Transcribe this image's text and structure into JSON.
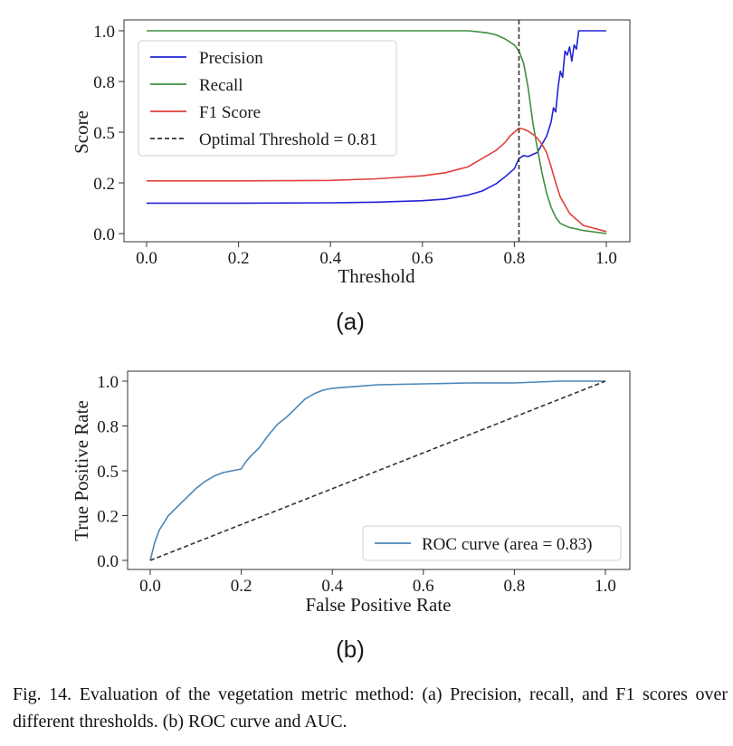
{
  "panels": [
    {
      "label": "(a)"
    },
    {
      "label": "(b)"
    }
  ],
  "caption": "Fig. 14.  Evaluation of the vegetation metric method: (a) Precision, recall, and F1 scores over different thresholds. (b) ROC curve and AUC.",
  "colors": {
    "precision": "#2323d6",
    "recall": "#3f8f3f",
    "f1": "#e0403c",
    "optimal": "#333333",
    "roc": "#4a86b8",
    "chance": "#333333"
  },
  "chart_data": [
    {
      "type": "line",
      "title": "",
      "xlabel": "Threshold",
      "ylabel": "Score",
      "xlim": [
        0.0,
        1.0
      ],
      "ylim": [
        0.0,
        1.0
      ],
      "xticks": [
        "0.0",
        "0.2",
        "0.4",
        "0.6",
        "0.8",
        "1.0"
      ],
      "yticks": [
        "0.0",
        "0.2",
        "0.5",
        "0.8",
        "1.0"
      ],
      "ytick_values": [
        0.0,
        0.25,
        0.5,
        0.75,
        1.0
      ],
      "grid": false,
      "legend_position": "upper-left",
      "series": [
        {
          "name": "Precision",
          "color": "#2323d6",
          "x": [
            0.0,
            0.2,
            0.4,
            0.5,
            0.6,
            0.65,
            0.7,
            0.73,
            0.76,
            0.78,
            0.8,
            0.81,
            0.82,
            0.83,
            0.84,
            0.85,
            0.86,
            0.87,
            0.88,
            0.885,
            0.89,
            0.895,
            0.9,
            0.905,
            0.91,
            0.915,
            0.92,
            0.925,
            0.93,
            0.935,
            0.94,
            0.95,
            1.0
          ],
          "y": [
            0.15,
            0.15,
            0.152,
            0.155,
            0.162,
            0.17,
            0.19,
            0.21,
            0.245,
            0.28,
            0.32,
            0.37,
            0.385,
            0.38,
            0.39,
            0.4,
            0.44,
            0.48,
            0.55,
            0.62,
            0.6,
            0.72,
            0.8,
            0.77,
            0.9,
            0.88,
            0.92,
            0.85,
            0.93,
            0.91,
            1.0,
            1.0,
            1.0
          ]
        },
        {
          "name": "Recall",
          "color": "#3f8f3f",
          "x": [
            0.0,
            0.2,
            0.4,
            0.6,
            0.7,
            0.72,
            0.74,
            0.76,
            0.78,
            0.8,
            0.81,
            0.82,
            0.83,
            0.84,
            0.85,
            0.86,
            0.87,
            0.88,
            0.89,
            0.9,
            0.92,
            0.95,
            1.0
          ],
          "y": [
            1.0,
            1.0,
            1.0,
            1.0,
            1.0,
            0.995,
            0.99,
            0.98,
            0.96,
            0.93,
            0.9,
            0.84,
            0.72,
            0.55,
            0.42,
            0.3,
            0.2,
            0.13,
            0.08,
            0.05,
            0.03,
            0.015,
            0.0
          ]
        },
        {
          "name": "F1 Score",
          "color": "#e0403c",
          "x": [
            0.0,
            0.2,
            0.4,
            0.5,
            0.6,
            0.65,
            0.7,
            0.73,
            0.76,
            0.78,
            0.79,
            0.8,
            0.81,
            0.82,
            0.83,
            0.84,
            0.85,
            0.86,
            0.87,
            0.88,
            0.89,
            0.9,
            0.92,
            0.95,
            1.0
          ],
          "y": [
            0.26,
            0.26,
            0.262,
            0.27,
            0.285,
            0.3,
            0.33,
            0.37,
            0.41,
            0.45,
            0.48,
            0.5,
            0.52,
            0.515,
            0.505,
            0.49,
            0.47,
            0.44,
            0.4,
            0.33,
            0.25,
            0.18,
            0.1,
            0.04,
            0.01
          ]
        }
      ],
      "vline": {
        "name": "Optimal Threshold = 0.81",
        "x": 0.81,
        "style": "dashed",
        "color": "#333333"
      }
    },
    {
      "type": "line",
      "title": "",
      "xlabel": "False Positive Rate",
      "ylabel": "True Positive Rate",
      "xlim": [
        0.0,
        1.0
      ],
      "ylim": [
        0.0,
        1.0
      ],
      "xticks": [
        "0.0",
        "0.2",
        "0.4",
        "0.6",
        "0.8",
        "1.0"
      ],
      "yticks": [
        "0.0",
        "0.2",
        "0.5",
        "0.8",
        "1.0"
      ],
      "ytick_values": [
        0.0,
        0.25,
        0.5,
        0.75,
        1.0
      ],
      "grid": false,
      "legend_position": "lower-right",
      "series": [
        {
          "name": "ROC curve (area = 0.83)",
          "color": "#4a86b8",
          "x": [
            0.0,
            0.005,
            0.01,
            0.02,
            0.03,
            0.04,
            0.06,
            0.08,
            0.1,
            0.12,
            0.14,
            0.16,
            0.18,
            0.2,
            0.21,
            0.22,
            0.24,
            0.26,
            0.28,
            0.3,
            0.32,
            0.34,
            0.36,
            0.38,
            0.4,
            0.45,
            0.5,
            0.6,
            0.7,
            0.8,
            0.9,
            1.0
          ],
          "y": [
            0.0,
            0.05,
            0.1,
            0.17,
            0.21,
            0.25,
            0.3,
            0.35,
            0.4,
            0.44,
            0.47,
            0.49,
            0.5,
            0.51,
            0.55,
            0.58,
            0.63,
            0.7,
            0.76,
            0.8,
            0.85,
            0.9,
            0.93,
            0.95,
            0.96,
            0.97,
            0.98,
            0.985,
            0.99,
            0.99,
            1.0,
            1.0
          ]
        },
        {
          "name": "",
          "color": "#333333",
          "style": "dashed",
          "x": [
            0.0,
            1.0
          ],
          "y": [
            0.0,
            1.0
          ]
        }
      ]
    }
  ]
}
